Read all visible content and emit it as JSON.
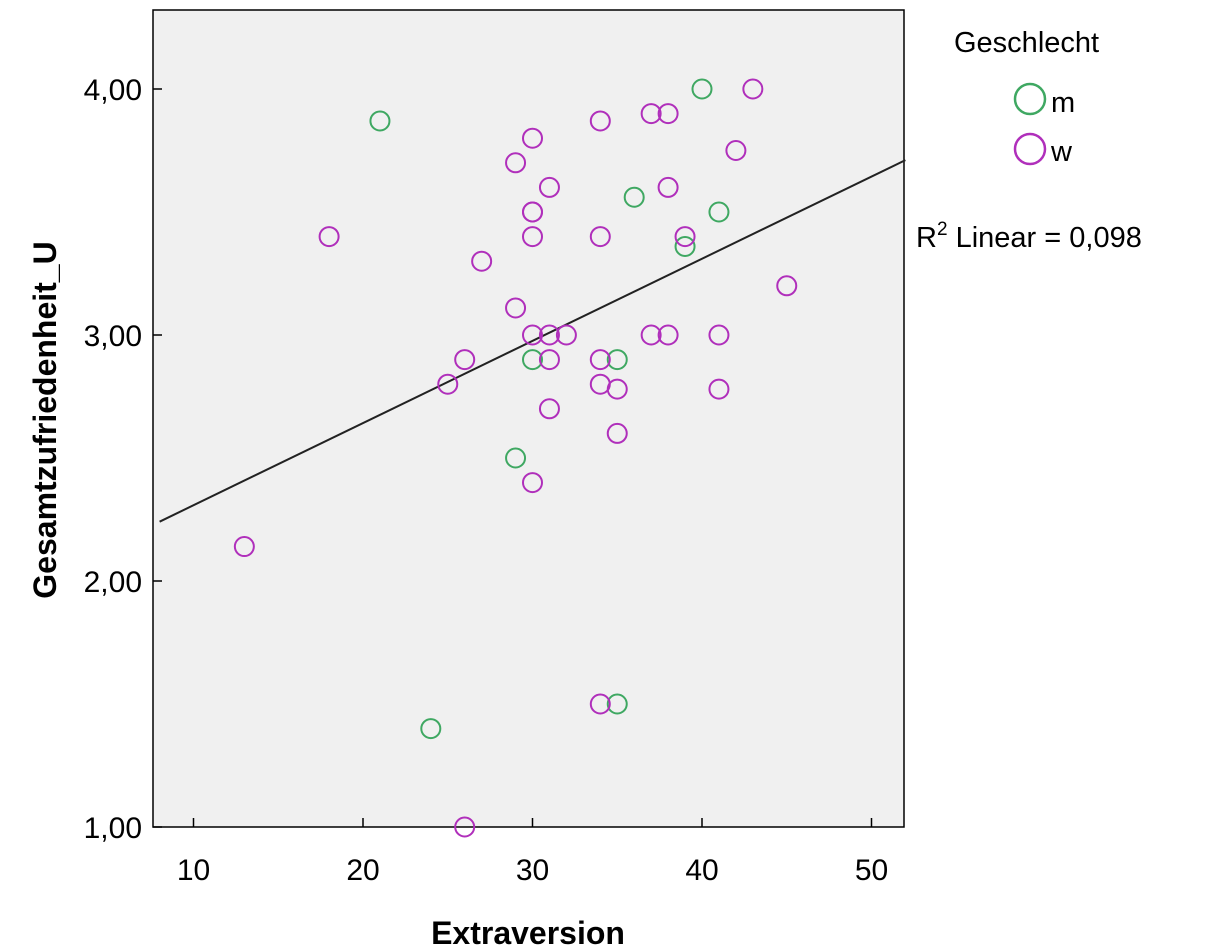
{
  "chart_data": {
    "type": "scatter",
    "title": "",
    "xlabel": "Extraversion",
    "ylabel": "Gesamtzufriedenheit_U",
    "xlim": [
      8,
      52
    ],
    "ylim": [
      1.0,
      4.3
    ],
    "x_ticks": [
      10,
      20,
      30,
      40,
      50
    ],
    "x_tick_labels": [
      "10",
      "20",
      "30",
      "40",
      "50"
    ],
    "y_ticks": [
      1.0,
      2.0,
      3.0,
      4.0
    ],
    "y_tick_labels": [
      "1,00",
      "2,00",
      "3,00",
      "4,00"
    ],
    "grid": false,
    "legend": {
      "title": "Geschlecht",
      "position": "top-right"
    },
    "fit_line": {
      "type": "linear",
      "r2_label": "R",
      "r2_text": " Linear = 0,098",
      "slope": 0.0334,
      "intercept": 1.974
    },
    "series": [
      {
        "name": "m",
        "color": "#3fa862",
        "points": [
          [
            21,
            3.87
          ],
          [
            40,
            4.0
          ],
          [
            36,
            3.56
          ],
          [
            41,
            3.5
          ],
          [
            39,
            3.36
          ],
          [
            30,
            2.9
          ],
          [
            35,
            2.9
          ],
          [
            29,
            2.5
          ],
          [
            24,
            1.4
          ],
          [
            35,
            1.5
          ]
        ]
      },
      {
        "name": "w",
        "color": "#b02fbb",
        "points": [
          [
            43,
            4.0
          ],
          [
            37,
            3.9
          ],
          [
            38,
            3.9
          ],
          [
            34,
            3.87
          ],
          [
            30,
            3.8
          ],
          [
            42,
            3.75
          ],
          [
            29,
            3.7
          ],
          [
            31,
            3.6
          ],
          [
            38,
            3.6
          ],
          [
            30,
            3.5
          ],
          [
            30,
            3.5
          ],
          [
            18,
            3.4
          ],
          [
            30,
            3.4
          ],
          [
            34,
            3.4
          ],
          [
            39,
            3.4
          ],
          [
            27,
            3.3
          ],
          [
            45,
            3.2
          ],
          [
            29,
            3.11
          ],
          [
            30,
            3.0
          ],
          [
            31,
            3.0
          ],
          [
            32,
            3.0
          ],
          [
            37,
            3.0
          ],
          [
            38,
            3.0
          ],
          [
            41,
            3.0
          ],
          [
            26,
            2.9
          ],
          [
            31,
            2.9
          ],
          [
            34,
            2.9
          ],
          [
            25,
            2.8
          ],
          [
            34,
            2.8
          ],
          [
            35,
            2.78
          ],
          [
            41,
            2.78
          ],
          [
            31,
            2.7
          ],
          [
            35,
            2.6
          ],
          [
            30,
            2.4
          ],
          [
            13,
            2.14
          ],
          [
            34,
            1.5
          ],
          [
            26,
            1.0
          ]
        ]
      }
    ]
  }
}
